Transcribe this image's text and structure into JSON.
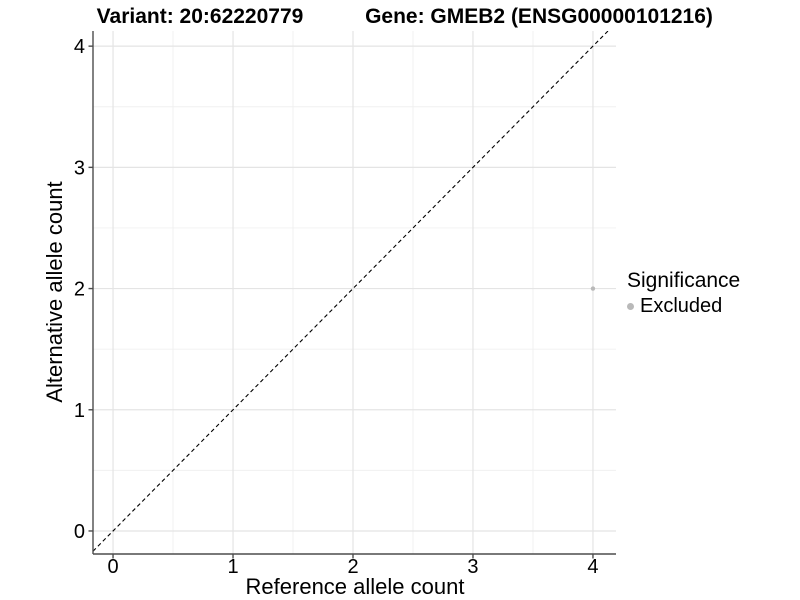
{
  "chart_data": {
    "type": "scatter",
    "title_left": "Variant: 20:62220779",
    "title_right": "Gene: GMEB2 (ENSG00000101216)",
    "xlabel": "Reference allele count",
    "ylabel": "Alternative allele count",
    "xlim": [
      -0.167,
      4.192
    ],
    "ylim": [
      -0.19,
      4.125
    ],
    "x_ticks": [
      0,
      1,
      2,
      3,
      4
    ],
    "y_ticks": [
      0,
      1,
      2,
      3,
      4
    ],
    "x_minor_ticks": [
      0.5,
      1.5,
      2.5,
      3.5
    ],
    "y_minor_ticks": [
      0.5,
      1.5,
      2.5,
      3.5
    ],
    "grid": true,
    "legend_position": "right",
    "reference_line": {
      "slope": 1,
      "intercept": 0,
      "style": "dashed"
    },
    "series": [
      {
        "name": "Excluded",
        "color": "#b9b9b9",
        "points": [
          {
            "x": 4,
            "y": 2
          }
        ]
      }
    ],
    "legend": {
      "title": "Significance",
      "items": [
        {
          "label": "Excluded",
          "color": "#b9b9b9"
        }
      ]
    },
    "colors": {
      "background": "#ffffff",
      "grid_major": "#e4e4e4",
      "grid_minor": "#f0f0f0",
      "axis": "#4d4d4d",
      "reference_line": "#000000",
      "tick_text": "#000000"
    }
  }
}
